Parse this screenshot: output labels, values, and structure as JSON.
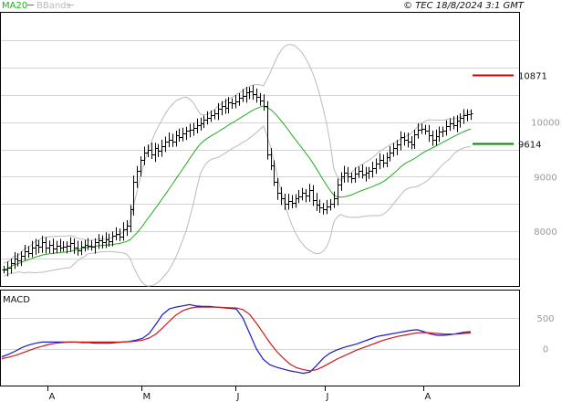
{
  "header": {
    "legend": [
      {
        "name": "MA20",
        "color": "#22aa22"
      },
      {
        "name": "BBands",
        "color": "#bbbbbb"
      }
    ],
    "copyright": "© TEC 18/8/2024 3:1 GMT"
  },
  "chart_data": [
    {
      "type": "ohlc",
      "panel": "price",
      "x_ticks": [
        "A",
        "M",
        "J",
        "J",
        "A"
      ],
      "y_ticks": [
        8000,
        9000,
        10000
      ],
      "ylim": [
        7000,
        12000
      ],
      "grid": true,
      "markers": [
        {
          "label": "10871",
          "value": 10871,
          "color": "#cc0000"
        },
        {
          "label": "9614",
          "value": 9614,
          "color": "#008800"
        }
      ],
      "overlays": [
        "MA20",
        "BBands"
      ],
      "colors": {
        "bars": "#000000",
        "ma20": "#22aa22",
        "bbands": "#bbbbbb"
      },
      "series": {
        "close": [
          7300,
          7340,
          7420,
          7500,
          7460,
          7560,
          7640,
          7600,
          7700,
          7760,
          7720,
          7800,
          7700,
          7760,
          7680,
          7740,
          7700,
          7720,
          7740,
          7780,
          7700,
          7660,
          7720,
          7760,
          7740,
          7720,
          7800,
          7840,
          7800,
          7860,
          7820,
          7920,
          7960,
          7900,
          8040,
          8100,
          8400,
          8900,
          9100,
          9300,
          9440,
          9500,
          9400,
          9520,
          9480,
          9560,
          9640,
          9680,
          9640,
          9760,
          9720,
          9800,
          9840,
          9860,
          9900,
          9940,
          9980,
          10040,
          10080,
          10120,
          10160,
          10240,
          10300,
          10260,
          10360,
          10340,
          10380,
          10440,
          10480,
          10540,
          10560,
          10520,
          10460,
          10400,
          10300,
          9400,
          9200,
          8900,
          8700,
          8600,
          8500,
          8560,
          8520,
          8600,
          8640,
          8700,
          8660,
          8760,
          8580,
          8480,
          8440,
          8400,
          8460,
          8500,
          8600,
          8860,
          9000,
          9080,
          9000,
          8980,
          9060,
          9100,
          9040,
          9080,
          9100,
          9160,
          9240,
          9300,
          9260,
          9360,
          9440,
          9520,
          9600,
          9720,
          9680,
          9640,
          9600,
          9780,
          9860,
          9880,
          9840,
          9760,
          9680,
          9740,
          9820,
          9840,
          9920,
          9980,
          9940,
          10020,
          10080,
          10120,
          10140,
          10160
        ]
      }
    },
    {
      "type": "line",
      "panel": "macd",
      "title": "MACD",
      "y_ticks": [
        0,
        500
      ],
      "ylim": [
        -600,
        950
      ],
      "x_ticks": [
        "A",
        "M",
        "J",
        "J",
        "A"
      ],
      "series": [
        {
          "role": "macd",
          "color": "#1a1acc",
          "values": [
            -130,
            -90,
            -40,
            20,
            60,
            90,
            110,
            110,
            110,
            110,
            110,
            110,
            100,
            100,
            90,
            90,
            90,
            100,
            110,
            120,
            140,
            170,
            250,
            400,
            560,
            650,
            680,
            700,
            720,
            700,
            690,
            690,
            680,
            670,
            660,
            650,
            500,
            250,
            0,
            -170,
            -260,
            -300,
            -330,
            -360,
            -380,
            -400,
            -380,
            -270,
            -150,
            -70,
            -20,
            20,
            50,
            80,
            120,
            160,
            200,
            220,
            240,
            260,
            280,
            300,
            310,
            280,
            240,
            220,
            220,
            230,
            250,
            270,
            280
          ]
        },
        {
          "role": "signal",
          "color": "#cc1a1a",
          "values": [
            -160,
            -140,
            -110,
            -70,
            -30,
            10,
            40,
            70,
            90,
            100,
            110,
            110,
            110,
            110,
            110,
            110,
            110,
            110,
            110,
            115,
            125,
            140,
            175,
            240,
            340,
            450,
            550,
            620,
            660,
            680,
            680,
            680,
            680,
            675,
            670,
            665,
            640,
            560,
            420,
            260,
            100,
            -40,
            -150,
            -250,
            -310,
            -340,
            -360,
            -340,
            -290,
            -230,
            -170,
            -120,
            -70,
            -20,
            20,
            60,
            100,
            140,
            170,
            200,
            220,
            240,
            260,
            265,
            260,
            250,
            240,
            240,
            240,
            250,
            260
          ]
        }
      ]
    }
  ]
}
